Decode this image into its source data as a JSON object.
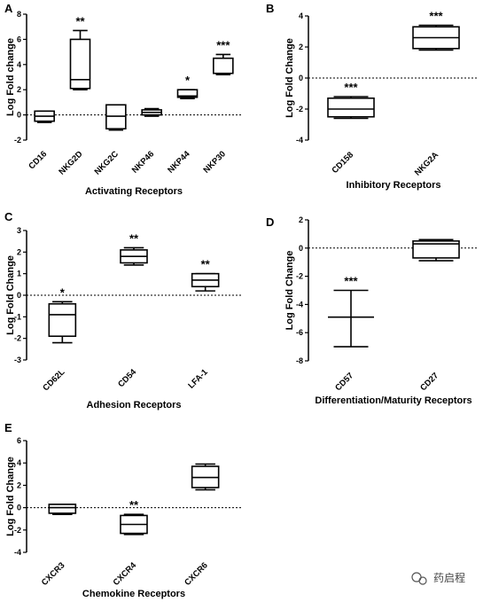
{
  "watermark": "药启程",
  "chart_data": [
    {
      "panel": "A",
      "type": "boxplot",
      "ylabel": "Log Fold change",
      "xlabel": "Activating Receptors",
      "ylim": [
        -2,
        8
      ],
      "yticks": [
        -2,
        0,
        2,
        4,
        6,
        8
      ],
      "reference_line": 0,
      "categories": [
        "CD16",
        "NKG2D",
        "NKG2C",
        "NKP46",
        "NKP44",
        "NKP30"
      ],
      "boxes": [
        {
          "min": -0.6,
          "q1": -0.5,
          "median": -0.1,
          "q3": 0.3,
          "max": 0.3,
          "sig": ""
        },
        {
          "min": 2.0,
          "q1": 2.1,
          "median": 2.8,
          "q3": 6.0,
          "max": 6.7,
          "sig": "**"
        },
        {
          "min": -1.2,
          "q1": -1.1,
          "median": -0.1,
          "q3": 0.8,
          "max": 0.8,
          "sig": ""
        },
        {
          "min": -0.1,
          "q1": 0.0,
          "median": 0.2,
          "q3": 0.4,
          "max": 0.5,
          "sig": ""
        },
        {
          "min": 1.3,
          "q1": 1.4,
          "median": 1.5,
          "q3": 2.0,
          "max": 2.0,
          "sig": "*"
        },
        {
          "min": 3.2,
          "q1": 3.3,
          "median": 3.3,
          "q3": 4.5,
          "max": 4.8,
          "sig": "***"
        }
      ]
    },
    {
      "panel": "B",
      "type": "boxplot",
      "ylabel": "Log Fold Change",
      "xlabel": "Inhibitory Receptors",
      "ylim": [
        -4,
        4
      ],
      "yticks": [
        -4,
        -2,
        0,
        2,
        4
      ],
      "reference_line": 0,
      "categories": [
        "CD158",
        "NKG2A"
      ],
      "boxes": [
        {
          "min": -2.6,
          "q1": -2.5,
          "median": -2.0,
          "q3": -1.3,
          "max": -1.2,
          "sig": "***"
        },
        {
          "min": 1.8,
          "q1": 1.9,
          "median": 2.6,
          "q3": 3.3,
          "max": 3.4,
          "sig": "***"
        }
      ]
    },
    {
      "panel": "C",
      "type": "boxplot",
      "ylabel": "Log Fold Change",
      "xlabel": "Adhesion Receptors",
      "ylim": [
        -3,
        3
      ],
      "yticks": [
        -3,
        -2,
        -1,
        0,
        1,
        2,
        3
      ],
      "reference_line": 0,
      "categories": [
        "CD62L",
        "CD54",
        "LFA-1"
      ],
      "boxes": [
        {
          "min": -2.2,
          "q1": -1.9,
          "median": -0.9,
          "q3": -0.4,
          "max": -0.3,
          "sig": "*"
        },
        {
          "min": 1.4,
          "q1": 1.5,
          "median": 1.8,
          "q3": 2.1,
          "max": 2.2,
          "sig": "**"
        },
        {
          "min": 0.2,
          "q1": 0.4,
          "median": 0.7,
          "q3": 1.0,
          "max": 1.0,
          "sig": "**"
        }
      ]
    },
    {
      "panel": "D",
      "type": "boxplot",
      "ylabel": "Log Fold Change",
      "xlabel": "Differentiation/Maturity Receptors",
      "ylim": [
        -8,
        2
      ],
      "yticks": [
        -8,
        -6,
        -4,
        -2,
        0,
        2
      ],
      "reference_line": 0,
      "categories": [
        "CD57",
        "CD27"
      ],
      "boxes": [
        {
          "min": -7.0,
          "q1": -4.9,
          "median": -4.9,
          "q3": -4.9,
          "max": -3.0,
          "sig": "***"
        },
        {
          "min": -0.9,
          "q1": -0.7,
          "median": 0.3,
          "q3": 0.5,
          "max": 0.6,
          "sig": ""
        }
      ]
    },
    {
      "panel": "E",
      "type": "boxplot",
      "ylabel": "Log Fold Change",
      "xlabel": "Chemokine Receptors",
      "ylim": [
        -4,
        6
      ],
      "yticks": [
        -4,
        -2,
        0,
        2,
        4,
        6
      ],
      "reference_line": 0,
      "categories": [
        "CXCR3",
        "CXCR4",
        "CXCR6"
      ],
      "boxes": [
        {
          "min": -0.6,
          "q1": -0.5,
          "median": 0.0,
          "q3": 0.3,
          "max": 0.3,
          "sig": ""
        },
        {
          "min": -2.4,
          "q1": -2.3,
          "median": -1.5,
          "q3": -0.7,
          "max": -0.6,
          "sig": "**"
        },
        {
          "min": 1.6,
          "q1": 1.8,
          "median": 2.7,
          "q3": 3.7,
          "max": 3.9,
          "sig": ""
        }
      ]
    }
  ]
}
